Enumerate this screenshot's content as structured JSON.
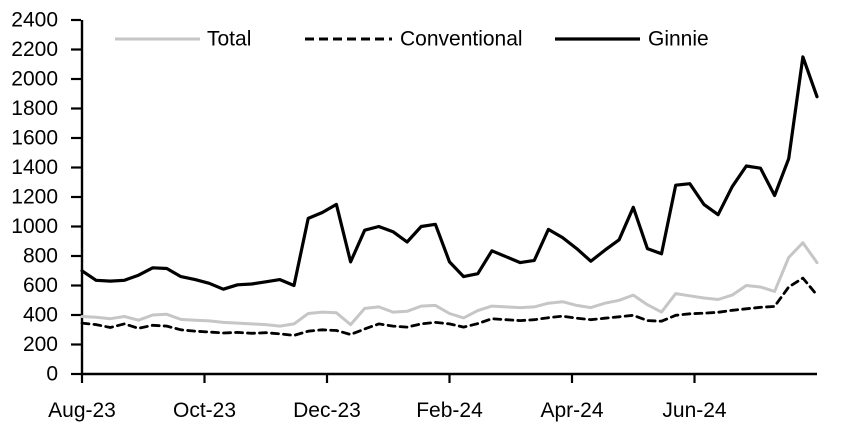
{
  "chart_data": {
    "type": "line",
    "title": "",
    "x_axis": {
      "tick_labels": [
        "Aug-23",
        "Oct-23",
        "Dec-23",
        "Feb-24",
        "Apr-24",
        "Jun-24"
      ],
      "range_note": "weekly observations, Aug-2023 through Aug-2024",
      "points_per_series": 53
    },
    "y_axis": {
      "min": 0,
      "max": 2400,
      "step": 200,
      "tick_labels": [
        "0",
        "200",
        "400",
        "600",
        "800",
        "1000",
        "1200",
        "1400",
        "1600",
        "1800",
        "2000",
        "2200",
        "2400"
      ]
    },
    "grid": "off",
    "legend_position": "top-inside",
    "series": [
      {
        "name": "Total",
        "color": "#c6c6c6",
        "dash": "",
        "width": 3,
        "values": [
          390,
          385,
          375,
          390,
          365,
          400,
          405,
          370,
          365,
          360,
          350,
          345,
          340,
          335,
          325,
          340,
          410,
          420,
          415,
          335,
          445,
          455,
          420,
          425,
          460,
          465,
          410,
          380,
          430,
          460,
          455,
          450,
          455,
          480,
          490,
          465,
          450,
          480,
          500,
          535,
          470,
          420,
          545,
          530,
          515,
          505,
          535,
          600,
          590,
          560,
          790,
          890,
          755
        ]
      },
      {
        "name": "Conventional",
        "color": "#000000",
        "dash": "7 5",
        "width": 2.8,
        "values": [
          345,
          335,
          315,
          340,
          310,
          330,
          325,
          300,
          290,
          285,
          278,
          282,
          276,
          280,
          272,
          262,
          290,
          300,
          295,
          268,
          305,
          340,
          325,
          318,
          340,
          350,
          340,
          318,
          342,
          375,
          368,
          362,
          368,
          382,
          392,
          378,
          368,
          378,
          388,
          398,
          362,
          358,
          398,
          408,
          412,
          418,
          432,
          442,
          452,
          458,
          590,
          650,
          535
        ]
      },
      {
        "name": "Ginnie",
        "color": "#000000",
        "dash": "",
        "width": 3.2,
        "values": [
          700,
          635,
          630,
          635,
          670,
          720,
          715,
          660,
          640,
          615,
          575,
          605,
          610,
          625,
          640,
          600,
          1055,
          1095,
          1150,
          760,
          975,
          1000,
          965,
          895,
          1000,
          1015,
          760,
          660,
          680,
          835,
          795,
          755,
          770,
          980,
          925,
          850,
          765,
          840,
          910,
          1130,
          850,
          815,
          1280,
          1290,
          1150,
          1080,
          1270,
          1410,
          1395,
          1210,
          1460,
          2150,
          1880
        ]
      }
    ]
  }
}
